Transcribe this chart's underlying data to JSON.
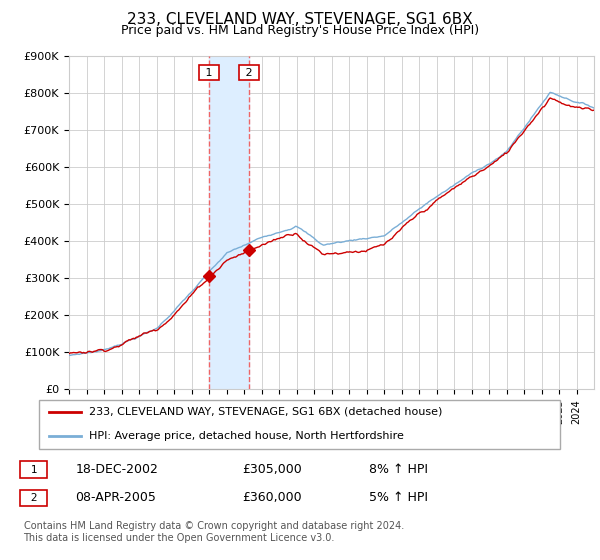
{
  "title": "233, CLEVELAND WAY, STEVENAGE, SG1 6BX",
  "subtitle": "Price paid vs. HM Land Registry's House Price Index (HPI)",
  "legend_line1": "233, CLEVELAND WAY, STEVENAGE, SG1 6BX (detached house)",
  "legend_line2": "HPI: Average price, detached house, North Hertfordshire",
  "footer": "Contains HM Land Registry data © Crown copyright and database right 2024.\nThis data is licensed under the Open Government Licence v3.0.",
  "transaction1_date": "18-DEC-2002",
  "transaction1_price": "£305,000",
  "transaction1_hpi": "8% ↑ HPI",
  "transaction1_year": 2003.0,
  "transaction1_value": 305000,
  "transaction2_date": "08-APR-2005",
  "transaction2_price": "£360,000",
  "transaction2_hpi": "5% ↑ HPI",
  "transaction2_year": 2005.28,
  "transaction2_value": 360000,
  "red_color": "#cc0000",
  "blue_color": "#7aaed6",
  "bg_color": "#ffffff",
  "grid_color": "#cccccc",
  "shade_color": "#ddeeff",
  "marker_box_color": "#cc0000",
  "ylim_min": 0,
  "ylim_max": 900000,
  "yticks": [
    0,
    100000,
    200000,
    300000,
    400000,
    500000,
    600000,
    700000,
    800000,
    900000
  ],
  "ytick_labels": [
    "£0",
    "£100K",
    "£200K",
    "£300K",
    "£400K",
    "£500K",
    "£600K",
    "£700K",
    "£800K",
    "£900K"
  ],
  "year_start": 1995,
  "year_end": 2025
}
